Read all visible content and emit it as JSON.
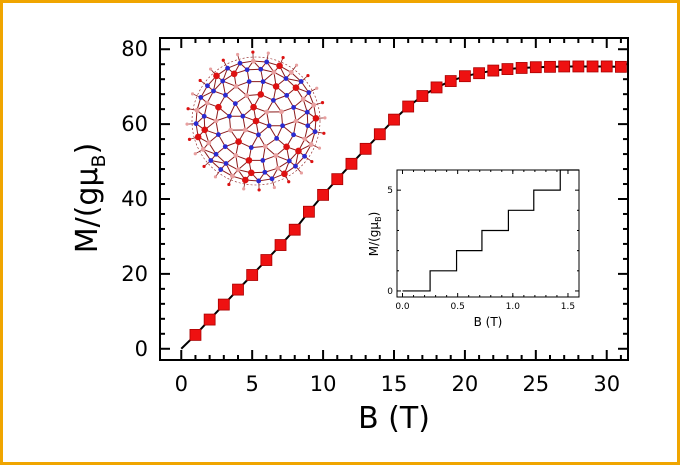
{
  "colors": {
    "border": "#f0a500",
    "marker": "#ee1111",
    "line": "#000000",
    "molecule_bond": "#8b1a1a",
    "molecule_atom_blue": "#2b2bd0",
    "molecule_atom_red": "#dd1111",
    "molecule_atom_pink": "#e8a0a0"
  },
  "chart_data": [
    {
      "type": "scatter",
      "xlabel": "B  (T)",
      "ylabel_main": "M/(gμ",
      "ylabel_sub": "B",
      "ylabel_close": ")",
      "xlim": [
        -1.5,
        31.5
      ],
      "ylim": [
        -3,
        83
      ],
      "xticks": [
        0,
        5,
        10,
        15,
        20,
        25,
        30
      ],
      "yticks": [
        0,
        20,
        40,
        60,
        80
      ],
      "xtick_labels": [
        "0",
        "5",
        "10",
        "15",
        "20",
        "25",
        "30"
      ],
      "ytick_labels": [
        "0",
        "20",
        "40",
        "60",
        "80"
      ],
      "grid": false,
      "series": [
        {
          "kind": "markers",
          "marker": "square",
          "x": [
            1.0,
            2.0,
            3.0,
            4.0,
            5.0,
            6.0,
            7.0,
            8.0,
            9.0,
            10.0,
            11.0,
            12.0,
            13.0,
            14.0,
            15.0,
            16.0,
            17.0,
            18.0,
            19.0,
            20.0,
            21.0,
            22.0,
            23.0,
            24.0,
            25.0,
            26.0,
            27.0,
            28.0,
            29.0,
            30.0,
            31.0
          ],
          "y": [
            3.7,
            7.8,
            11.8,
            15.8,
            19.7,
            23.7,
            27.7,
            31.8,
            36.6,
            41.1,
            45.3,
            49.4,
            53.4,
            57.3,
            61.2,
            64.7,
            67.5,
            69.8,
            71.5,
            72.8,
            73.6,
            74.3,
            74.7,
            75.0,
            75.2,
            75.3,
            75.4,
            75.4,
            75.4,
            75.4,
            75.3
          ]
        },
        {
          "kind": "line",
          "x": [
            0.0,
            1.0,
            2.0,
            3.0,
            4.0,
            5.0,
            6.0,
            7.0,
            8.0,
            9.0,
            10.0,
            11.0,
            12.0,
            13.0,
            14.0,
            15.0,
            16.0,
            17.0,
            18.0,
            19.0,
            20.0,
            21.0,
            22.0,
            23.0,
            24.0,
            25.0,
            26.0,
            27.0,
            28.0,
            29.0,
            30.0,
            31.0
          ],
          "y": [
            0.0,
            3.7,
            7.8,
            11.8,
            15.8,
            19.7,
            23.7,
            27.7,
            31.8,
            36.6,
            41.1,
            45.3,
            49.4,
            53.4,
            57.3,
            61.2,
            64.7,
            67.5,
            69.8,
            71.5,
            72.8,
            73.6,
            74.3,
            74.7,
            75.0,
            75.2,
            75.3,
            75.4,
            75.4,
            75.4,
            75.4,
            75.3
          ]
        }
      ]
    },
    {
      "type": "line",
      "xlabel": "B  (T)",
      "ylabel_main": "M/(gμ",
      "ylabel_sub": "B",
      "ylabel_close": ")",
      "xlim": [
        -0.05,
        1.6
      ],
      "ylim": [
        -0.3,
        6.0
      ],
      "xticks": [
        0.0,
        0.5,
        1.0,
        1.5
      ],
      "yticks": [
        0,
        5
      ],
      "xtick_labels": [
        "0.0",
        "0.5",
        "1.0",
        "1.5"
      ],
      "ytick_labels": [
        "0",
        "5"
      ],
      "grid": false,
      "series": [
        {
          "kind": "staircase",
          "x": [
            0.0,
            0.25,
            0.25,
            0.49,
            0.49,
            0.72,
            0.72,
            0.96,
            0.96,
            1.19,
            1.19,
            1.43,
            1.43,
            1.6
          ],
          "y": [
            0,
            0,
            1,
            1,
            2,
            2,
            3,
            3,
            4,
            4,
            5,
            5,
            6,
            6
          ]
        }
      ]
    }
  ]
}
